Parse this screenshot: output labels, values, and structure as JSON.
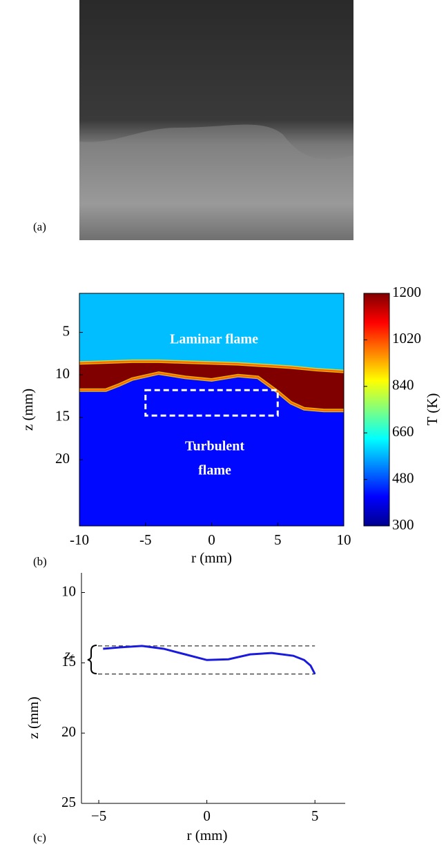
{
  "panel_labels": [
    "(a)",
    "(b)",
    "(c)"
  ],
  "chart_data": [
    {
      "type": "heatmap",
      "xlabel": "r (mm)",
      "ylabel": "z (mm)",
      "colorbar_label": "T (K)",
      "xlim": [
        -10,
        10
      ],
      "xticks": [
        -10,
        -5,
        0,
        5,
        10
      ],
      "ylim": [
        0.4,
        27.8
      ],
      "yticks": [
        5,
        10,
        15,
        20
      ],
      "clim": [
        300,
        1200
      ],
      "cticks": [
        300,
        480,
        660,
        840,
        1020,
        1200
      ],
      "colormap": "jet",
      "region_temperatures": {
        "top": 580,
        "middle": 1200,
        "bottom": 420
      },
      "upper_front": {
        "x": [
          -10,
          -8,
          -6,
          -4,
          -2,
          0,
          2,
          4,
          6,
          8,
          10
        ],
        "z": [
          8.6,
          8.5,
          8.4,
          8.4,
          8.5,
          8.6,
          8.7,
          8.9,
          9.1,
          9.4,
          9.6
        ]
      },
      "lower_front": {
        "x": [
          -10,
          -8,
          -7,
          -6,
          -4,
          -2,
          0,
          2,
          3.5,
          5,
          6,
          7,
          8.5,
          10
        ],
        "z": [
          11.8,
          11.8,
          11.2,
          10.5,
          9.8,
          10.3,
          10.6,
          10.1,
          10.3,
          12.0,
          13.3,
          14.0,
          14.2,
          14.2
        ]
      },
      "box": {
        "x": [
          -5,
          5
        ],
        "z": [
          11.8,
          14.8
        ]
      },
      "annotations": [
        "Laminar flame",
        "Turbulent",
        "flame"
      ]
    },
    {
      "type": "line",
      "xlabel": "r (mm)",
      "ylabel": "z (mm)",
      "xlim": [
        -5.8,
        6.4
      ],
      "xticks": [
        {
          "value": -5,
          "label": "−5"
        },
        0,
        5
      ],
      "ylim": [
        8.6,
        25
      ],
      "yticks": [
        10,
        15,
        20,
        25
      ],
      "series": [
        {
          "color": "#1a1adc",
          "x": [
            -4.8,
            -4,
            -3,
            -2,
            -1,
            0,
            1,
            2,
            3,
            4,
            4.5,
            4.8,
            5
          ],
          "values": [
            14.0,
            13.9,
            13.8,
            14.0,
            14.4,
            14.8,
            14.75,
            14.4,
            14.3,
            14.5,
            14.8,
            15.2,
            15.8
          ]
        }
      ],
      "dashed_levels": [
        13.8,
        15.8
      ],
      "zf_label": "z",
      "zf_sub": "f"
    }
  ]
}
